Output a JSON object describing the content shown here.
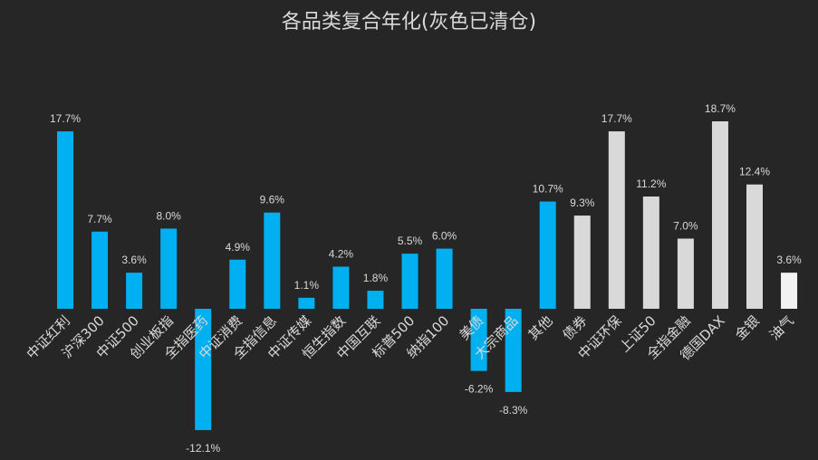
{
  "chart_data": {
    "type": "bar",
    "title": "各品类复合年化(灰色已清仓)",
    "xlabel": "",
    "ylabel": "",
    "ylim": [
      -13,
      19
    ],
    "grid": false,
    "unit": "%",
    "categories": [
      "中证红利",
      "沪深300",
      "中证500",
      "创业板指",
      "全指医药",
      "中证消费",
      "全指信息",
      "中证传媒",
      "恒生指数",
      "中国互联",
      "标普500",
      "纳指100",
      "美债",
      "大宗商品",
      "其他",
      "债券",
      "中证环保",
      "上证50",
      "全指金融",
      "德国DAX",
      "金银",
      "油气"
    ],
    "values": [
      17.7,
      7.7,
      3.6,
      8.0,
      -12.1,
      4.9,
      9.6,
      1.1,
      4.2,
      1.8,
      5.5,
      6.0,
      -6.2,
      -8.3,
      10.7,
      9.3,
      17.7,
      11.2,
      7.0,
      18.7,
      12.4,
      3.6
    ],
    "labels": [
      "17.7%",
      "7.7%",
      "3.6%",
      "8.0%",
      "-12.1%",
      "4.9%",
      "9.6%",
      "1.1%",
      "4.2%",
      "1.8%",
      "5.5%",
      "6.0%",
      "-6.2%",
      "-8.3%",
      "10.7%",
      "9.3%",
      "17.7%",
      "11.2%",
      "7.0%",
      "18.7%",
      "12.4%",
      "3.6%"
    ],
    "status": [
      "held",
      "held",
      "held",
      "held",
      "held",
      "held",
      "held",
      "held",
      "held",
      "held",
      "held",
      "held",
      "held",
      "held",
      "held",
      "cleared",
      "cleared",
      "cleared",
      "cleared",
      "cleared",
      "cleared",
      "current"
    ],
    "colors": {
      "held": "#00b0f0",
      "cleared": "#d9d9d9",
      "current": "#f2f2f2"
    }
  }
}
